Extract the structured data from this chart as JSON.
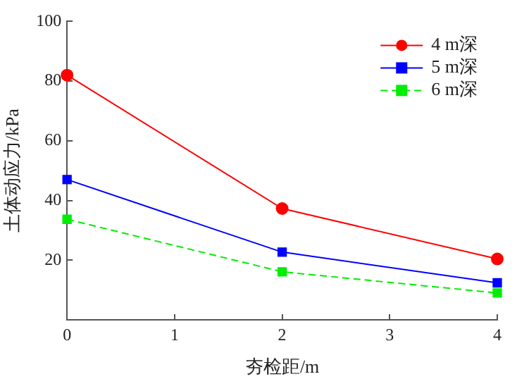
{
  "chart_data": {
    "type": "line",
    "xlabel": "夯检距/m",
    "ylabel": "土体动应力/kPa",
    "x": [
      0,
      2,
      4
    ],
    "series": [
      {
        "name": "4 m深",
        "color": "#ff0000",
        "values": [
          82,
          37.3,
          20.4
        ],
        "marker": "circle",
        "line_style": "solid"
      },
      {
        "name": "5 m深",
        "color": "#0000ff",
        "values": [
          47,
          22.7,
          12.4
        ],
        "marker": "square",
        "line_style": "solid"
      },
      {
        "name": "6 m深",
        "color": "#00ee00",
        "values": [
          33.7,
          16.1,
          9
        ],
        "marker": "square",
        "line_style": "dashed"
      }
    ],
    "xlim": [
      0,
      4
    ],
    "xticks": [
      0,
      1,
      2,
      3,
      4
    ],
    "ylim": [
      0,
      100
    ],
    "yticks": [
      {
        "value": 0,
        "label": null
      },
      20,
      40,
      60,
      80,
      100
    ],
    "grid": false,
    "legend": "top right"
  }
}
